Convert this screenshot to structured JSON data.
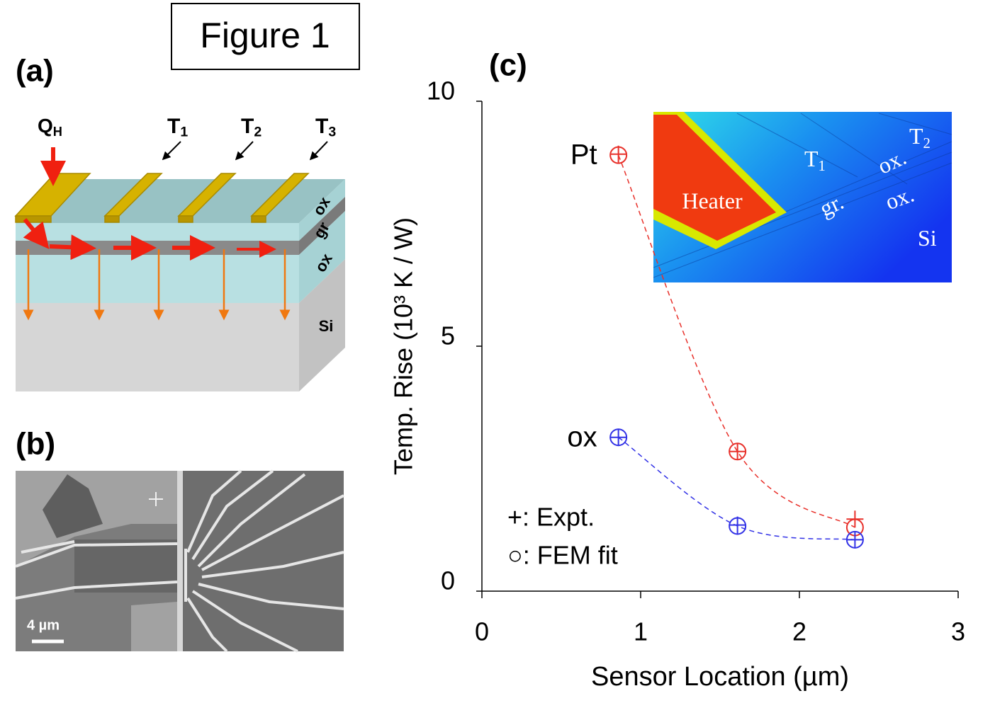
{
  "figure_title": "Figure 1",
  "panel_a": {
    "label": "(a)",
    "heat": {
      "text": "Q",
      "sub": "H"
    },
    "sensors": [
      {
        "text": "T",
        "sub": "1"
      },
      {
        "text": "T",
        "sub": "2"
      },
      {
        "text": "T",
        "sub": "3"
      }
    ],
    "layers": [
      "ox",
      "gr",
      "ox",
      "Si"
    ]
  },
  "panel_b": {
    "label": "(b)",
    "scale_bar": "4 µm"
  },
  "chart_data": {
    "type": "scatter",
    "label": "(c)",
    "x_label": "Sensor Location (µm)",
    "y_label": "Temp. Rise (10³ K / W)",
    "xlim": [
      0,
      3
    ],
    "ylim": [
      0,
      10
    ],
    "xticks": [
      0,
      1,
      2,
      3
    ],
    "yticks": [
      0,
      5,
      10
    ],
    "x": [
      0.86,
      1.61,
      2.35
    ],
    "series": [
      {
        "name": "Pt",
        "color": "#e8302a",
        "values": [
          8.9,
          2.85,
          1.3
        ],
        "expt": [
          8.92,
          2.85,
          1.47
        ]
      },
      {
        "name": "ox",
        "color": "#3232e6",
        "values": [
          3.14,
          1.33,
          1.05
        ],
        "expt": [
          3.14,
          1.35,
          1.05
        ]
      }
    ],
    "legend": [
      "+: Expt.",
      "○: FEM fit"
    ],
    "inset": {
      "heater": "Heater",
      "labels": [
        {
          "text": "T",
          "sub": "1"
        },
        {
          "text": "T",
          "sub": "2"
        },
        {
          "text": "gr."
        },
        {
          "text": "ox."
        },
        {
          "text": "ox."
        },
        {
          "text": "Si"
        }
      ]
    }
  }
}
